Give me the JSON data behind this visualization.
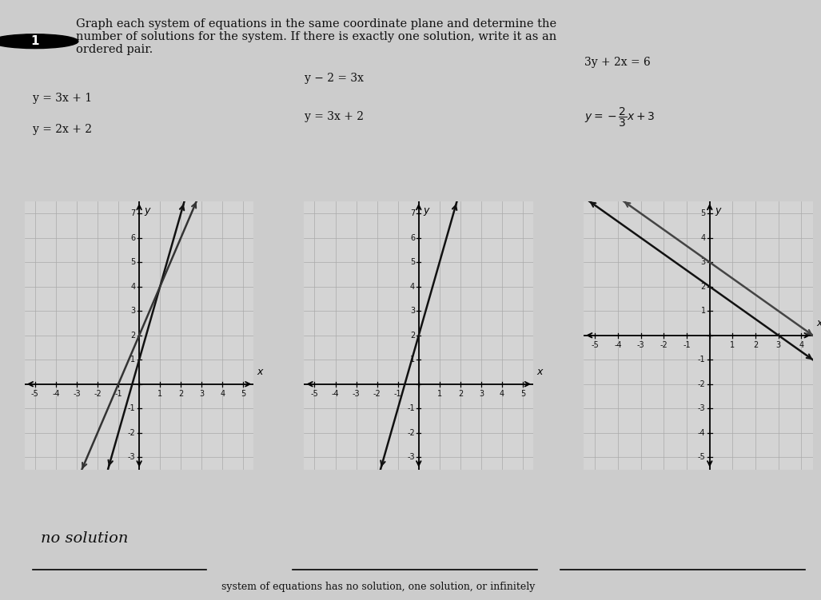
{
  "background_color": "#cccccc",
  "graph1": {
    "eq1_label": "y = 3x + 1",
    "eq2_label": "y = 2x + 2",
    "eq1_slope": 3,
    "eq1_intercept": 1,
    "eq2_slope": 2,
    "eq2_intercept": 2,
    "xlim": [
      -5.5,
      5.5
    ],
    "ylim": [
      -3.5,
      7.5
    ],
    "xticks": [
      -5,
      -4,
      -3,
      -2,
      -1,
      0,
      1,
      2,
      3,
      4,
      5
    ],
    "yticks": [
      -3,
      -2,
      -1,
      0,
      1,
      2,
      3,
      4,
      5,
      6,
      7
    ]
  },
  "graph2": {
    "eq1_label": "y - 2 = 3x",
    "eq2_label": "y = 3x + 2",
    "eq1_slope": 3,
    "eq1_intercept": 2,
    "eq2_slope": 3,
    "eq2_intercept": 2,
    "xlim": [
      -5.5,
      5.5
    ],
    "ylim": [
      -3.5,
      7.5
    ],
    "xticks": [
      -5,
      -4,
      -3,
      -2,
      -1,
      0,
      1,
      2,
      3,
      4,
      5
    ],
    "yticks": [
      -3,
      -2,
      -1,
      0,
      1,
      2,
      3,
      4,
      5,
      6,
      7
    ]
  },
  "graph3": {
    "eq1_label": "3y + 2x = 6",
    "eq2_label": "y = -2/3 x + 3",
    "eq1_slope": -0.6667,
    "eq1_intercept": 2.0,
    "eq2_slope": -0.6667,
    "eq2_intercept": 3.0,
    "xlim": [
      -5.5,
      4.5
    ],
    "ylim": [
      -5.5,
      5.5
    ],
    "xticks": [
      -5,
      -4,
      -3,
      -2,
      -1,
      0,
      1,
      2,
      3,
      4
    ],
    "yticks": [
      -5,
      -4,
      -3,
      -2,
      -1,
      0,
      1,
      2,
      3,
      4,
      5
    ]
  },
  "answer_text": "no solution",
  "bottom_text": "system of equations has no solution, one solution, or infinitely",
  "font_color": "#111111"
}
